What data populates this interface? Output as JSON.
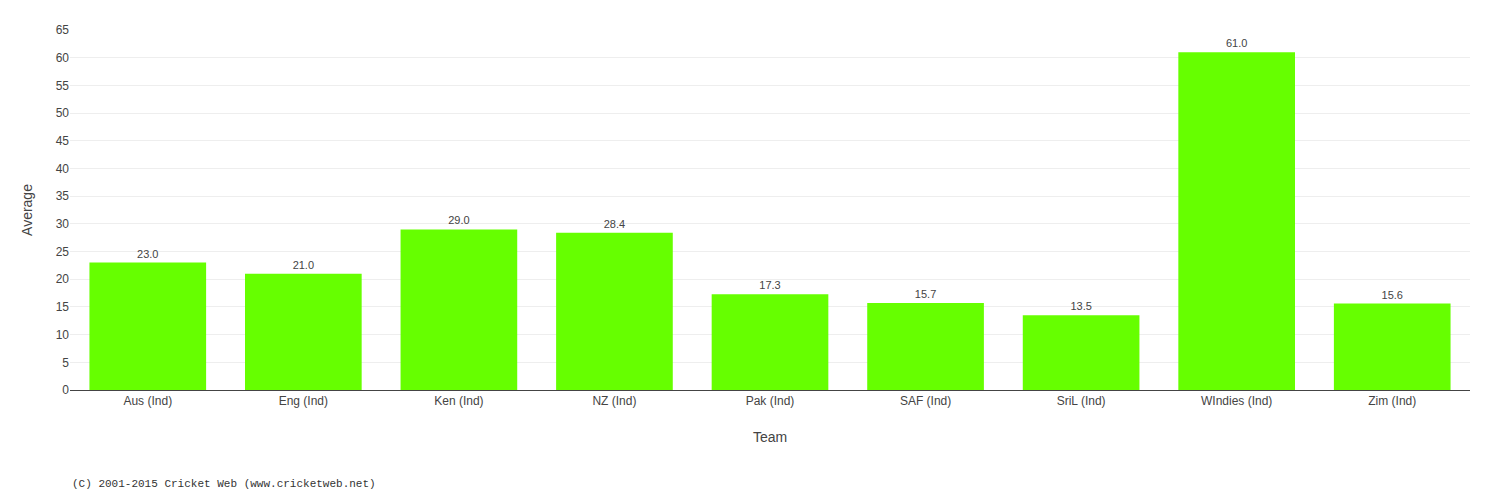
{
  "chart_data": {
    "type": "bar",
    "xlabel": "Team",
    "ylabel": "Average",
    "annotations": [
      "(C) 2001-2015 Cricket Web (www.cricketweb.net)"
    ],
    "categories": [
      "Aus (Ind)",
      "Eng (Ind)",
      "Ken (Ind)",
      "NZ (Ind)",
      "Pak (Ind)",
      "SAF (Ind)",
      "SriL (Ind)",
      "WIndies (Ind)",
      "Zim (Ind)"
    ],
    "values": [
      23.0,
      21.0,
      29.0,
      28.4,
      17.3,
      15.7,
      13.5,
      61.0,
      15.6
    ],
    "value_labels": [
      "23.0",
      "21.0",
      "29.0",
      "28.4",
      "17.3",
      "15.7",
      "13.5",
      "61.0",
      "15.6"
    ],
    "data_labels": true,
    "color": "#66ff00",
    "ylim": [
      0,
      65
    ],
    "yticks": [
      0,
      5,
      10,
      15,
      20,
      25,
      30,
      35,
      40,
      45,
      50,
      55,
      60,
      65
    ],
    "grid": true
  }
}
